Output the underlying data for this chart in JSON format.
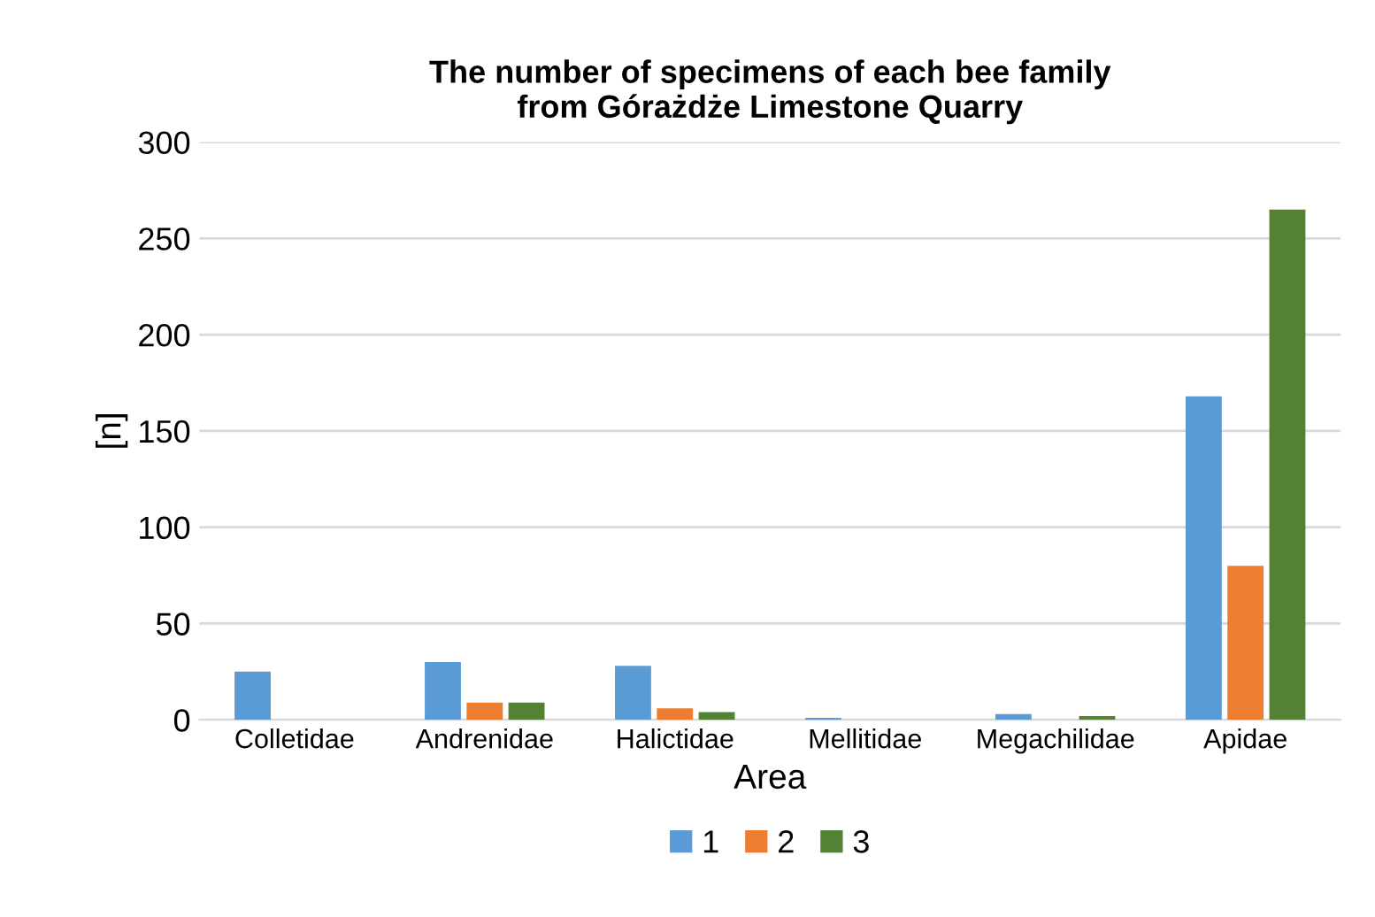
{
  "chart_data": {
    "type": "bar",
    "title": "The number of specimens of each bee family\nfrom Górażdże Limestone Quarry",
    "xlabel": "Area",
    "ylabel": "[n]",
    "categories": [
      "Colletidae",
      "Andrenidae",
      "Halictidae",
      "Mellitidae",
      "Megachilidae",
      "Apidae"
    ],
    "series": [
      {
        "name": "1",
        "color": "#5b9bd5",
        "values": [
          25,
          30,
          28,
          1,
          3,
          168
        ]
      },
      {
        "name": "2",
        "color": "#ed7d31",
        "values": [
          0,
          9,
          6,
          0,
          0,
          80
        ]
      },
      {
        "name": "3",
        "color": "#548235",
        "values": [
          0,
          9,
          4,
          0,
          2,
          265
        ]
      }
    ],
    "ylim": [
      0,
      300
    ],
    "yticks": [
      0,
      50,
      100,
      150,
      200,
      250,
      300
    ],
    "grid": "y",
    "legend": "bottom"
  }
}
